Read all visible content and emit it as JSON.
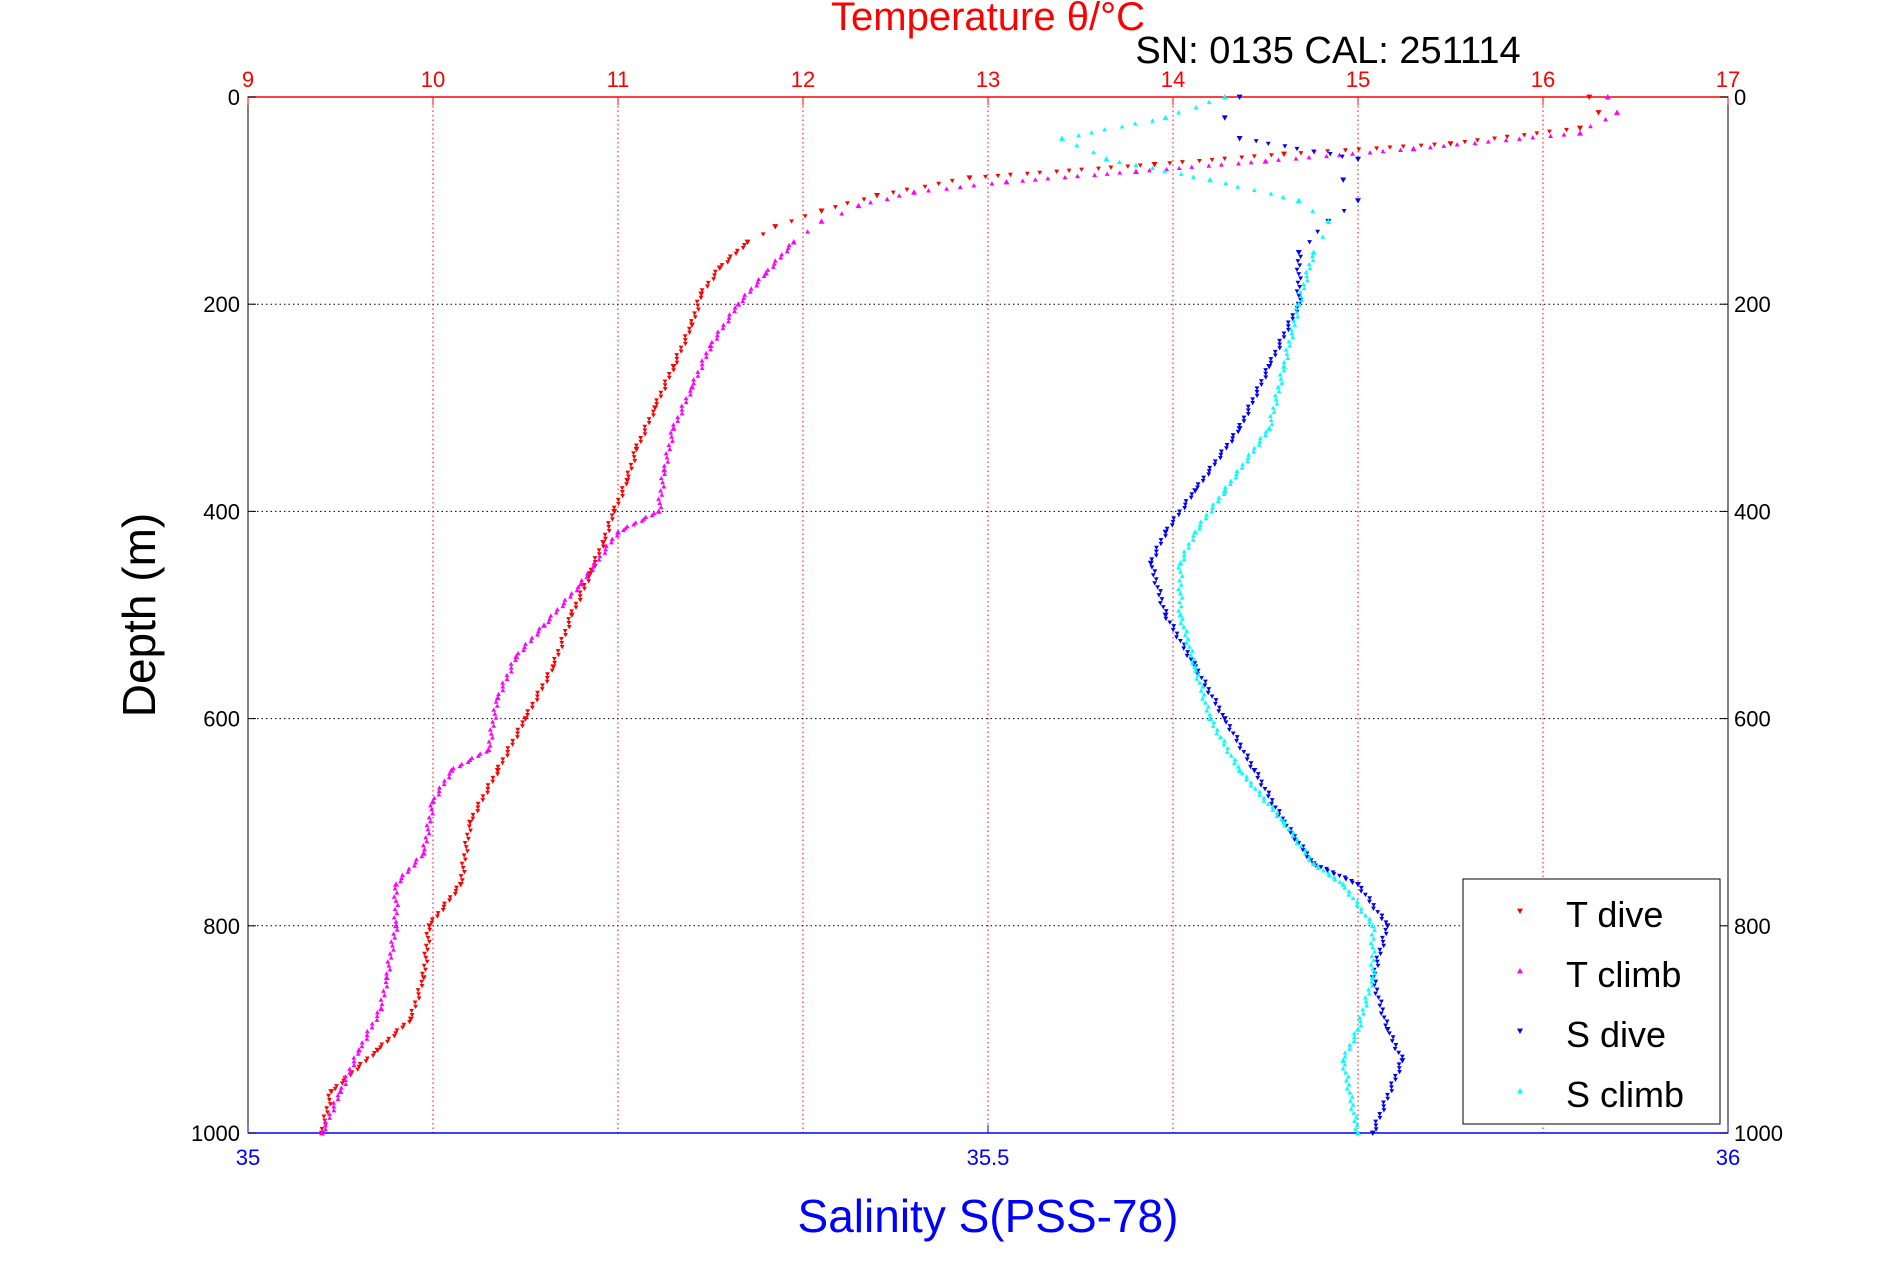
{
  "chart_data": {
    "type": "scatter",
    "title": "Temperature θ/°C",
    "subtitle": "SN: 0135  CAL: 251114",
    "x_top": {
      "label": "Temperature θ/°C",
      "range": [
        9,
        17
      ],
      "ticks": [
        "9",
        "10",
        "11",
        "12",
        "13",
        "14",
        "15",
        "16",
        "17"
      ],
      "color": "#ff0000"
    },
    "x_bottom": {
      "label": "Salinity S(PSS-78)",
      "range": [
        35,
        36
      ],
      "ticks": [
        "35",
        "35.5",
        "36"
      ],
      "color": "#0000ff"
    },
    "y": {
      "label": "Depth (m)",
      "range": [
        0,
        1000
      ],
      "reversed": true,
      "ticks": [
        "0",
        "200",
        "400",
        "600",
        "800",
        "1000"
      ]
    },
    "grid": true,
    "legend_position": "bottom-right",
    "series": [
      {
        "name": "T dive",
        "axis": "temperature",
        "color": "#ff0000",
        "marker": "triangle-down",
        "points": [
          [
            16.25,
            0
          ],
          [
            16.3,
            15
          ],
          [
            16.2,
            30
          ],
          [
            15.5,
            45
          ],
          [
            14.6,
            55
          ],
          [
            13.9,
            65
          ],
          [
            12.9,
            78
          ],
          [
            12.4,
            95
          ],
          [
            12.1,
            110
          ],
          [
            11.85,
            125
          ],
          [
            11.7,
            140
          ],
          [
            11.55,
            165
          ],
          [
            11.45,
            190
          ],
          [
            11.4,
            220
          ],
          [
            11.3,
            260
          ],
          [
            11.2,
            300
          ],
          [
            11.1,
            340
          ],
          [
            11.05,
            370
          ],
          [
            10.98,
            400
          ],
          [
            10.92,
            430
          ],
          [
            10.85,
            460
          ],
          [
            10.75,
            500
          ],
          [
            10.65,
            550
          ],
          [
            10.5,
            600
          ],
          [
            10.35,
            650
          ],
          [
            10.2,
            700
          ],
          [
            10.15,
            760
          ],
          [
            9.98,
            800
          ],
          [
            9.95,
            850
          ],
          [
            9.88,
            890
          ],
          [
            9.7,
            920
          ],
          [
            9.45,
            960
          ],
          [
            9.4,
            1000
          ]
        ]
      },
      {
        "name": "T climb",
        "axis": "temperature",
        "color": "#ff00ff",
        "marker": "triangle-up",
        "points": [
          [
            16.35,
            0
          ],
          [
            16.4,
            15
          ],
          [
            16.2,
            35
          ],
          [
            15.3,
            50
          ],
          [
            14.5,
            62
          ],
          [
            13.8,
            72
          ],
          [
            13.1,
            82
          ],
          [
            12.6,
            92
          ],
          [
            12.3,
            105
          ],
          [
            12.1,
            120
          ],
          [
            11.95,
            140
          ],
          [
            11.8,
            170
          ],
          [
            11.65,
            200
          ],
          [
            11.5,
            240
          ],
          [
            11.4,
            280
          ],
          [
            11.3,
            320
          ],
          [
            11.25,
            360
          ],
          [
            11.22,
            400
          ],
          [
            11.0,
            420
          ],
          [
            10.8,
            470
          ],
          [
            10.6,
            510
          ],
          [
            10.45,
            540
          ],
          [
            10.35,
            580
          ],
          [
            10.3,
            630
          ],
          [
            10.1,
            650
          ],
          [
            10.0,
            680
          ],
          [
            9.95,
            730
          ],
          [
            9.8,
            760
          ],
          [
            9.8,
            800
          ],
          [
            9.75,
            850
          ],
          [
            9.72,
            880
          ],
          [
            9.6,
            920
          ],
          [
            9.5,
            960
          ],
          [
            9.4,
            1000
          ]
        ]
      },
      {
        "name": "S dive",
        "axis": "salinity",
        "color": "#0000ff",
        "marker": "triangle-down",
        "points": [
          [
            35.67,
            0
          ],
          [
            35.66,
            20
          ],
          [
            35.67,
            40
          ],
          [
            35.75,
            60
          ],
          [
            35.74,
            80
          ],
          [
            35.75,
            100
          ],
          [
            35.73,
            120
          ],
          [
            35.71,
            150
          ],
          [
            35.71,
            200
          ],
          [
            35.69,
            260
          ],
          [
            35.67,
            320
          ],
          [
            35.64,
            380
          ],
          [
            35.62,
            420
          ],
          [
            35.61,
            450
          ],
          [
            35.62,
            500
          ],
          [
            35.64,
            550
          ],
          [
            35.66,
            600
          ],
          [
            35.68,
            650
          ],
          [
            35.7,
            700
          ],
          [
            35.72,
            740
          ],
          [
            35.75,
            760
          ],
          [
            35.77,
            800
          ],
          [
            35.76,
            850
          ],
          [
            35.77,
            900
          ],
          [
            35.78,
            930
          ],
          [
            35.76,
            1000
          ]
        ]
      },
      {
        "name": "S climb",
        "axis": "salinity",
        "color": "#00ffff",
        "marker": "triangle-up",
        "points": [
          [
            35.66,
            0
          ],
          [
            35.62,
            20
          ],
          [
            35.55,
            40
          ],
          [
            35.58,
            60
          ],
          [
            35.65,
            80
          ],
          [
            35.71,
            100
          ],
          [
            35.73,
            120
          ],
          [
            35.72,
            150
          ],
          [
            35.71,
            200
          ],
          [
            35.7,
            260
          ],
          [
            35.69,
            320
          ],
          [
            35.66,
            380
          ],
          [
            35.64,
            420
          ],
          [
            35.63,
            450
          ],
          [
            35.63,
            500
          ],
          [
            35.64,
            550
          ],
          [
            35.65,
            600
          ],
          [
            35.67,
            650
          ],
          [
            35.7,
            700
          ],
          [
            35.72,
            740
          ],
          [
            35.74,
            760
          ],
          [
            35.76,
            800
          ],
          [
            35.76,
            850
          ],
          [
            35.75,
            900
          ],
          [
            35.74,
            930
          ],
          [
            35.75,
            1000
          ]
        ]
      }
    ]
  }
}
